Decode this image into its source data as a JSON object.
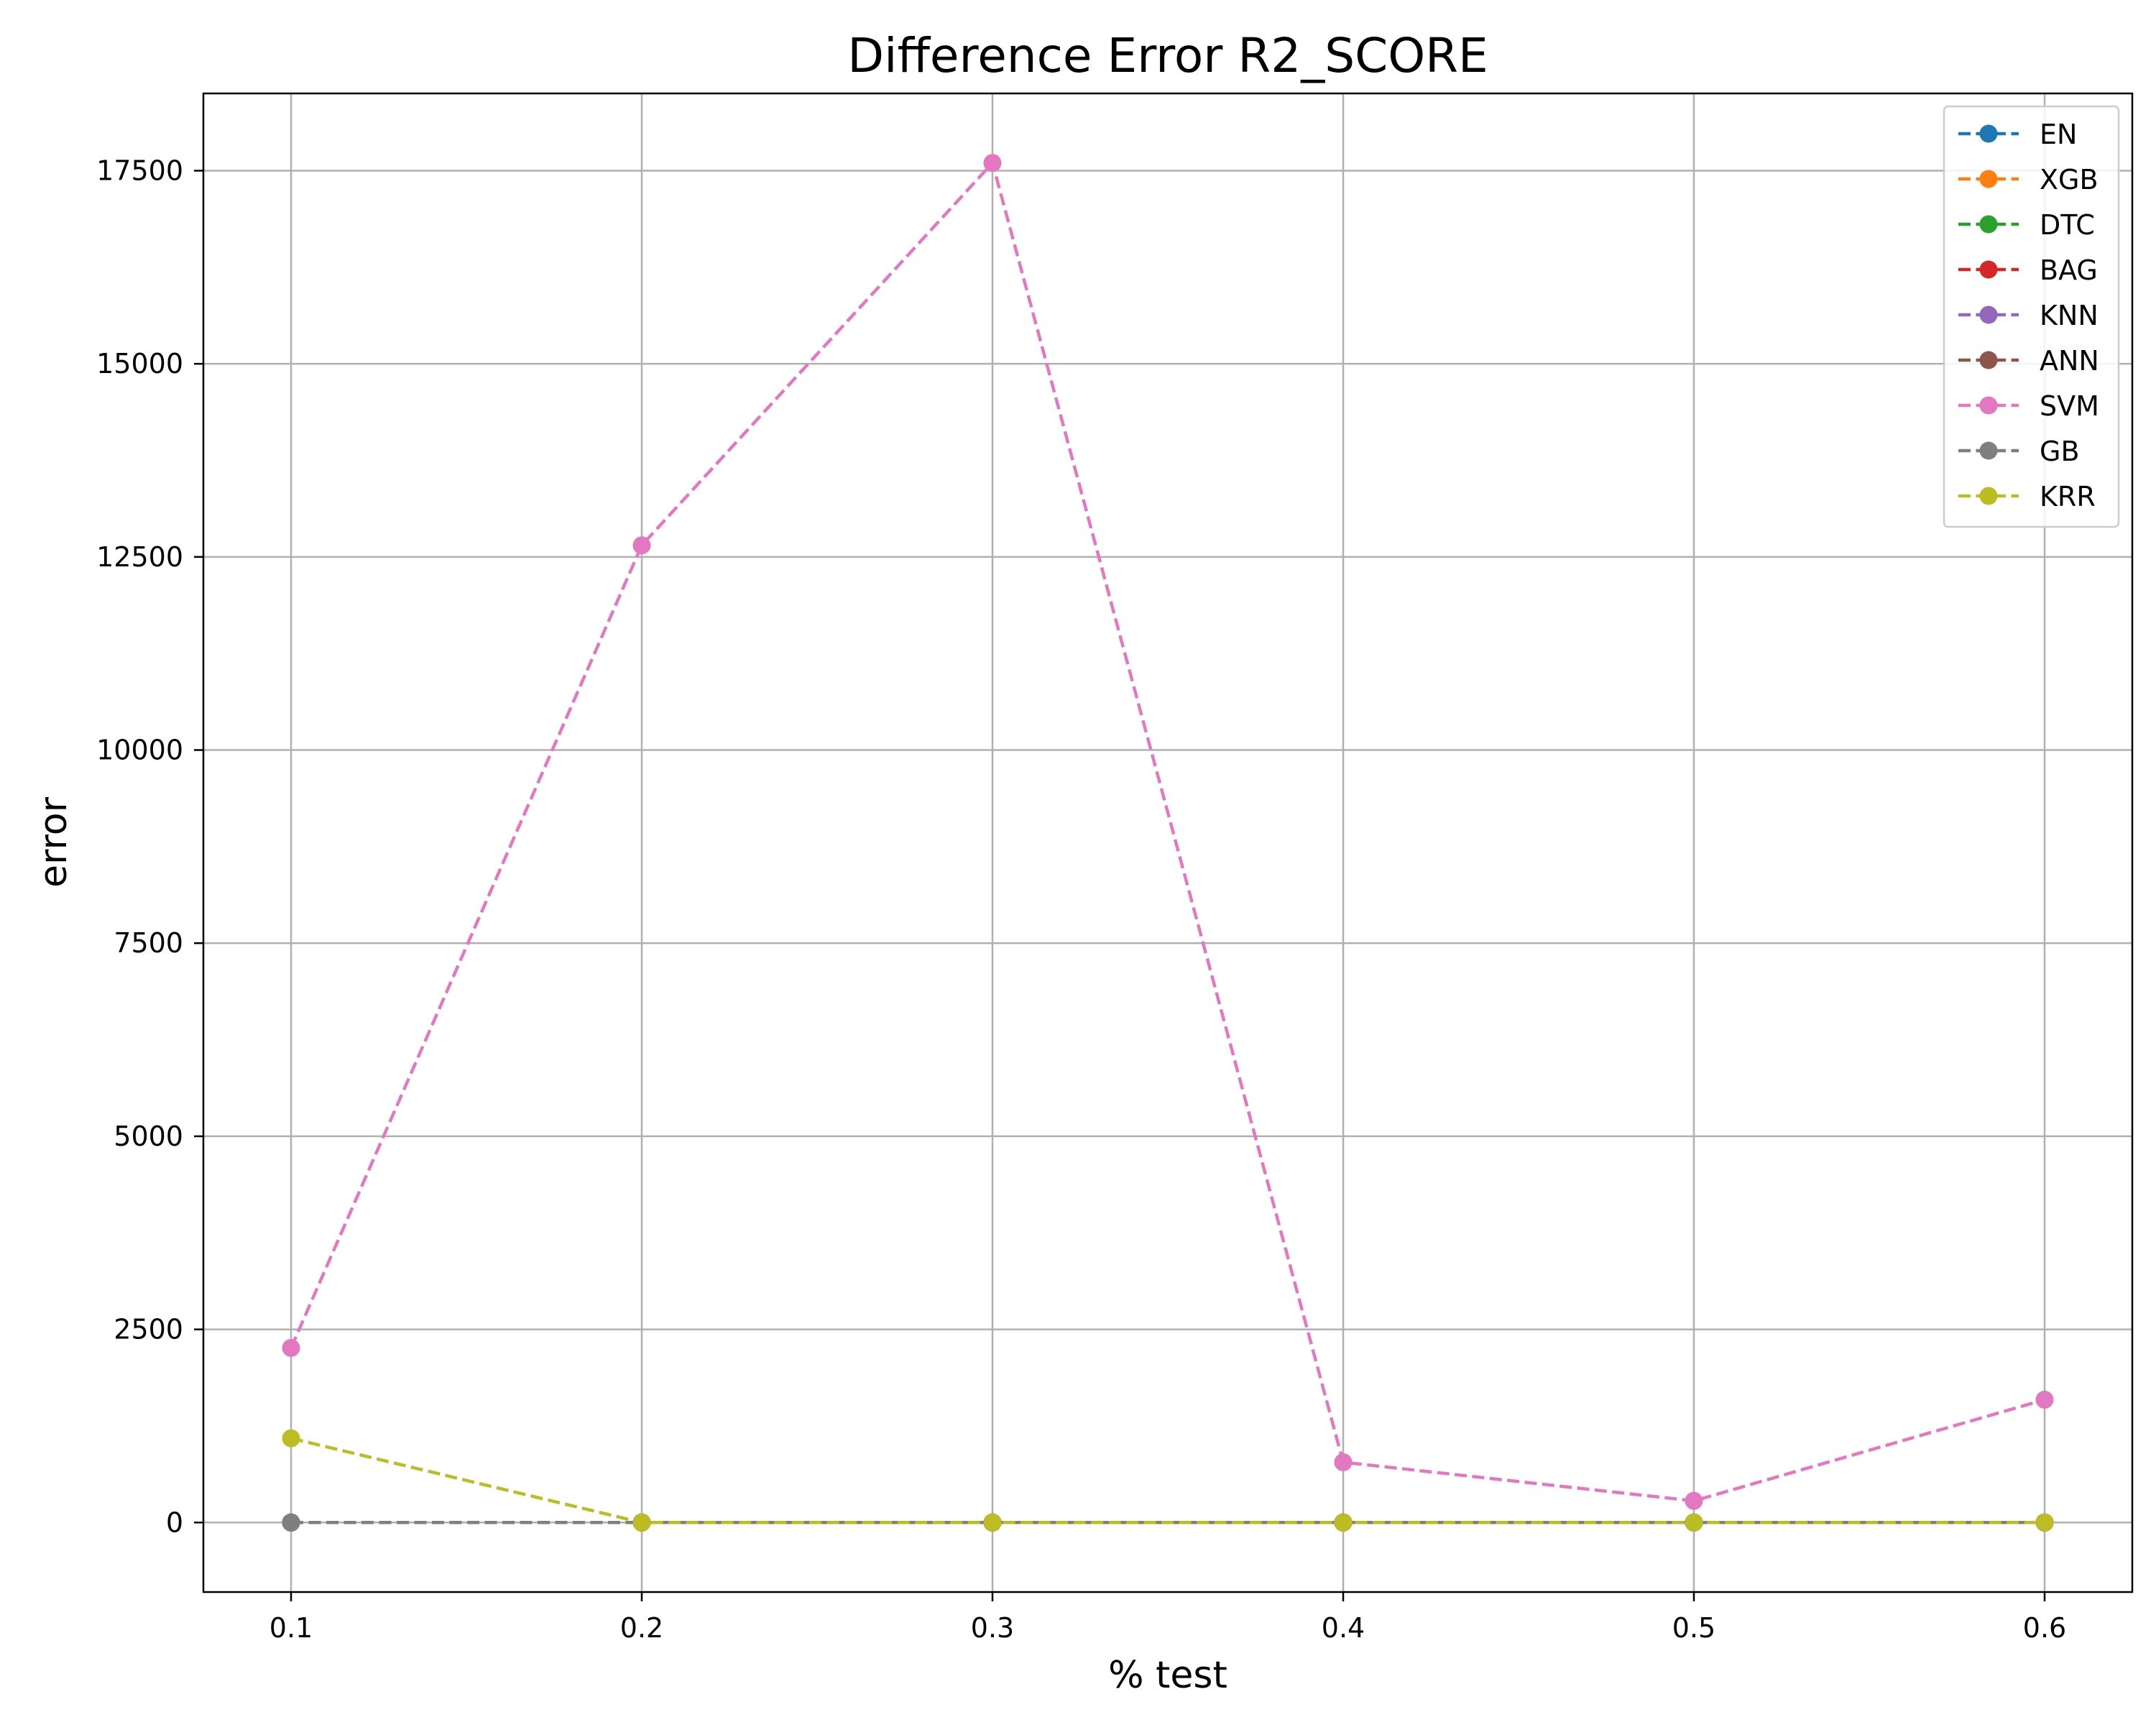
{
  "chart_data": {
    "type": "line",
    "title": "Difference Error R2_SCORE",
    "xlabel": "% test",
    "ylabel": "error",
    "x": [
      0.1,
      0.2,
      0.3,
      0.4,
      0.5,
      0.6
    ],
    "x_tick_labels": [
      "0.1",
      "0.2",
      "0.3",
      "0.4",
      "0.5",
      "0.6"
    ],
    "xlim": [
      0.075,
      0.625
    ],
    "ylim": [
      -900,
      18500
    ],
    "y_ticks": [
      0,
      2500,
      5000,
      7500,
      10000,
      12500,
      15000,
      17500
    ],
    "y_tick_labels": [
      "0",
      "2500",
      "5000",
      "7500",
      "10000",
      "12500",
      "15000",
      "17500"
    ],
    "grid": true,
    "legend_position": "top-right",
    "line_style": "dashed",
    "marker": "circle",
    "series": [
      {
        "name": "EN",
        "color": "#1f77b4",
        "values": [
          0,
          0,
          0,
          0,
          0,
          0
        ]
      },
      {
        "name": "XGB",
        "color": "#ff7f0e",
        "values": [
          0,
          0,
          0,
          0,
          0,
          0
        ]
      },
      {
        "name": "DTC",
        "color": "#2ca02c",
        "values": [
          0,
          0,
          0,
          0,
          0,
          0
        ]
      },
      {
        "name": "BAG",
        "color": "#d62728",
        "values": [
          0,
          0,
          0,
          0,
          0,
          0
        ]
      },
      {
        "name": "KNN",
        "color": "#9467bd",
        "values": [
          0,
          0,
          0,
          0,
          0,
          0
        ]
      },
      {
        "name": "ANN",
        "color": "#8c564b",
        "values": [
          0,
          0,
          0,
          0,
          0,
          0
        ]
      },
      {
        "name": "SVM",
        "color": "#e377c2",
        "values": [
          2260,
          12650,
          17600,
          780,
          280,
          1590
        ]
      },
      {
        "name": "GB",
        "color": "#7f7f7f",
        "values": [
          0,
          0,
          0,
          0,
          0,
          0
        ]
      },
      {
        "name": "KRR",
        "color": "#bcbd22",
        "values": [
          1090,
          0,
          0,
          0,
          0,
          0
        ]
      }
    ]
  }
}
